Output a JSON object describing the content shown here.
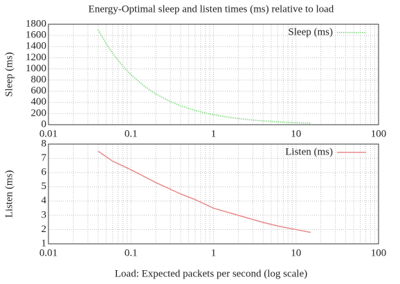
{
  "chart_data": [
    {
      "type": "line",
      "title": "Energy-Optimal sleep and listen times (ms) relative to load",
      "ylabel": "Sleep (ms)",
      "xscale": "log",
      "grid": true,
      "legend": "upper right",
      "x": [
        0.04,
        0.05,
        0.06,
        0.08,
        0.1,
        0.15,
        0.2,
        0.3,
        0.4,
        0.6,
        0.8,
        1,
        1.5,
        2,
        3,
        4,
        6,
        8,
        10,
        15
      ],
      "series": [
        {
          "name": "Sleep (ms)",
          "color": "#8fdc8f",
          "style": "dotted",
          "values": [
            1700,
            1454,
            1280,
            1047,
            895,
            674,
            551,
            415,
            339,
            255,
            209,
            179,
            134,
            110,
            83,
            68,
            51,
            42,
            36,
            27
          ]
        }
      ],
      "xlim": [
        0.01,
        100
      ],
      "xticks": [
        0.01,
        0.1,
        1,
        10,
        100
      ],
      "xminorticks": [
        0.02,
        0.03,
        0.04,
        0.05,
        0.06,
        0.07,
        0.08,
        0.09,
        0.2,
        0.3,
        0.4,
        0.5,
        0.6,
        0.7,
        0.8,
        0.9,
        2,
        3,
        4,
        5,
        6,
        7,
        8,
        9,
        20,
        30,
        40,
        50,
        60,
        70,
        80,
        90
      ],
      "ylim": [
        0,
        1800
      ],
      "yticks": [
        0,
        200,
        400,
        600,
        800,
        1000,
        1200,
        1400,
        1600,
        1800
      ]
    },
    {
      "type": "line",
      "xlabel": "Load: Expected packets per second (log scale)",
      "ylabel": "Listen (ms)",
      "xscale": "log",
      "grid": true,
      "legend": "upper right",
      "x": [
        0.04,
        0.06,
        0.1,
        0.2,
        0.4,
        0.6,
        1,
        2,
        4,
        6,
        10,
        15
      ],
      "series": [
        {
          "name": "Listen (ms)",
          "color": "#e88a8a",
          "style": "solid",
          "values": [
            7.5,
            6.8,
            6.2,
            5.3,
            4.5,
            4.1,
            3.5,
            3.0,
            2.5,
            2.25,
            2.0,
            1.8
          ]
        }
      ],
      "xlim": [
        0.01,
        100
      ],
      "xticks": [
        0.01,
        0.1,
        1,
        10,
        100
      ],
      "xminorticks": [
        0.02,
        0.03,
        0.04,
        0.05,
        0.06,
        0.07,
        0.08,
        0.09,
        0.2,
        0.3,
        0.4,
        0.5,
        0.6,
        0.7,
        0.8,
        0.9,
        2,
        3,
        4,
        5,
        6,
        7,
        8,
        9,
        20,
        30,
        40,
        50,
        60,
        70,
        80,
        90
      ],
      "ylim": [
        1,
        8
      ],
      "yticks": [
        1,
        2,
        3,
        4,
        5,
        6,
        7,
        8
      ]
    }
  ]
}
